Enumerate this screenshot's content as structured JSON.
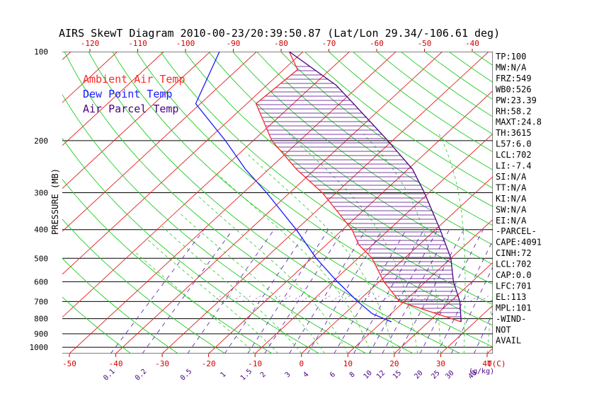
{
  "chart_data": {
    "type": "line",
    "title": "AIRS SkewT Diagram 2010-00-23/20:39:50.87 (Lat/Lon 29.34/-106.61 deg)",
    "ylabel": "PRESSURE (MB)",
    "xlabel": "T(C)",
    "mixing_ratio_unit": "(g/kg)",
    "yscale": "log",
    "ylim": [
      1050,
      100
    ],
    "pressure_ticks": [
      100,
      200,
      300,
      400,
      500,
      600,
      700,
      800,
      900,
      1000
    ],
    "bottom_temp_ticks": [
      -50,
      -40,
      -30,
      -20,
      -10,
      0,
      10,
      20,
      30,
      40
    ],
    "top_temp_ticks": [
      -120,
      -110,
      -100,
      -90,
      -80,
      -70,
      -60,
      -50,
      -40
    ],
    "mixing_ratio_ticks": [
      "0.1",
      "0.2",
      "0.5",
      "1",
      "1.5",
      "2",
      "3",
      "4",
      "6",
      "8",
      "10",
      "12",
      "15",
      "20",
      "25",
      "30",
      "40"
    ],
    "legend": [
      {
        "name": "Ambient Air Temp",
        "color": "#ff2a2a"
      },
      {
        "name": "Dew Point Temp",
        "color": "#1a1aff"
      },
      {
        "name": "Air Parcel Temp",
        "color": "#4b0082"
      }
    ],
    "series": [
      {
        "name": "Ambient Air Temp",
        "color": "#ff2a2a",
        "points": [
          [
            820,
            27
          ],
          [
            700,
            9
          ],
          [
            600,
            1
          ],
          [
            500,
            -7
          ],
          [
            450,
            -13
          ],
          [
            400,
            -18
          ],
          [
            300,
            -33
          ],
          [
            250,
            -44
          ],
          [
            200,
            -56
          ],
          [
            150,
            -68
          ],
          [
            115,
            -67
          ],
          [
            100,
            -73
          ]
        ]
      },
      {
        "name": "Dew Point Temp",
        "color": "#1a1aff",
        "points": [
          [
            820,
            12
          ],
          [
            770,
            6
          ],
          [
            700,
            0
          ],
          [
            600,
            -9
          ],
          [
            500,
            -19
          ],
          [
            400,
            -30
          ],
          [
            300,
            -45
          ],
          [
            250,
            -55
          ],
          [
            200,
            -66
          ],
          [
            150,
            -81
          ],
          [
            100,
            -88
          ]
        ]
      },
      {
        "name": "Air Parcel Temp",
        "color": "#4b0082",
        "points": [
          [
            820,
            27
          ],
          [
            700,
            22
          ],
          [
            600,
            16
          ],
          [
            500,
            10
          ],
          [
            400,
            1
          ],
          [
            300,
            -11
          ],
          [
            250,
            -19
          ],
          [
            200,
            -31
          ],
          [
            150,
            -47
          ],
          [
            130,
            -55
          ],
          [
            100,
            -73
          ]
        ]
      }
    ],
    "indices": [
      "TP:100",
      "MW:N/A",
      "FRZ:549",
      "WB0:526",
      "PW:23.39",
      "RH:58.2",
      "MAXT:24.8",
      "TH:3615",
      "L57:6.0",
      "LCL:702",
      "LI:-7.4",
      "SI:N/A",
      "TT:N/A",
      "KI:N/A",
      "SW:N/A",
      "EI:N/A",
      "-PARCEL-",
      "CAPE:4091",
      "CINH:72",
      "LCL:702",
      "CAP:0.0",
      "LFC:701",
      "EL:113",
      "MPL:101",
      "-WIND-",
      "NOT",
      "AVAIL"
    ]
  }
}
